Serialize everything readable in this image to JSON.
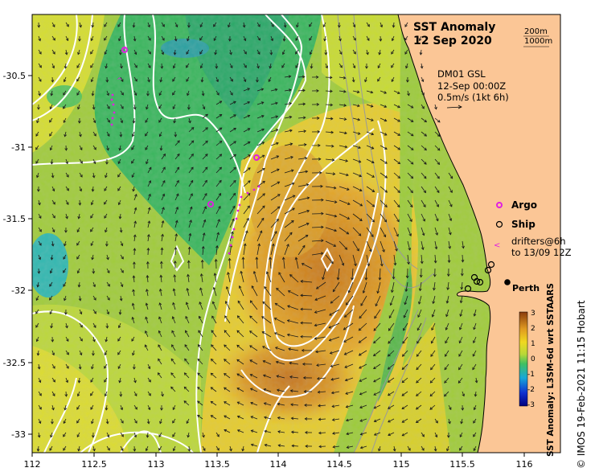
{
  "map": {
    "title_line1": "SST Anomaly",
    "title_line2": "12 Sep 2020",
    "contour_key_200": "200m",
    "contour_key_1000": "1000m",
    "current_source": "DM01 GSL",
    "current_time": "12-Sep 00:00Z",
    "current_scale": "0.5m/s (1kt 6h)",
    "legend_argo": "Argo",
    "legend_ship": "Ship",
    "legend_drifters_line1": "drifters@6h",
    "legend_drifters_line2": "to 13/09 12Z",
    "city_label": "Perth",
    "colorbar_label": "SST Anomaly: L3SM-6d wrt SSTAARS",
    "credit": "© IMOS 19-Feb-2021 11:15 Hobart",
    "x_ticks": [
      "112",
      "112.5",
      "113",
      "113.5",
      "114",
      "114.5",
      "115",
      "115.5",
      "116"
    ],
    "y_ticks": [
      "-30.5",
      "-31",
      "-31.5",
      "-32",
      "-32.5",
      "-33"
    ],
    "colorbar_ticks": [
      "3",
      "2",
      "1",
      "0",
      "-1",
      "-2",
      "-3"
    ],
    "colors": {
      "land": "#fbc696",
      "argo": "#e020e0",
      "ship": "#000000",
      "contour": "#ffffff",
      "isobath": "#9a9a9a"
    }
  }
}
